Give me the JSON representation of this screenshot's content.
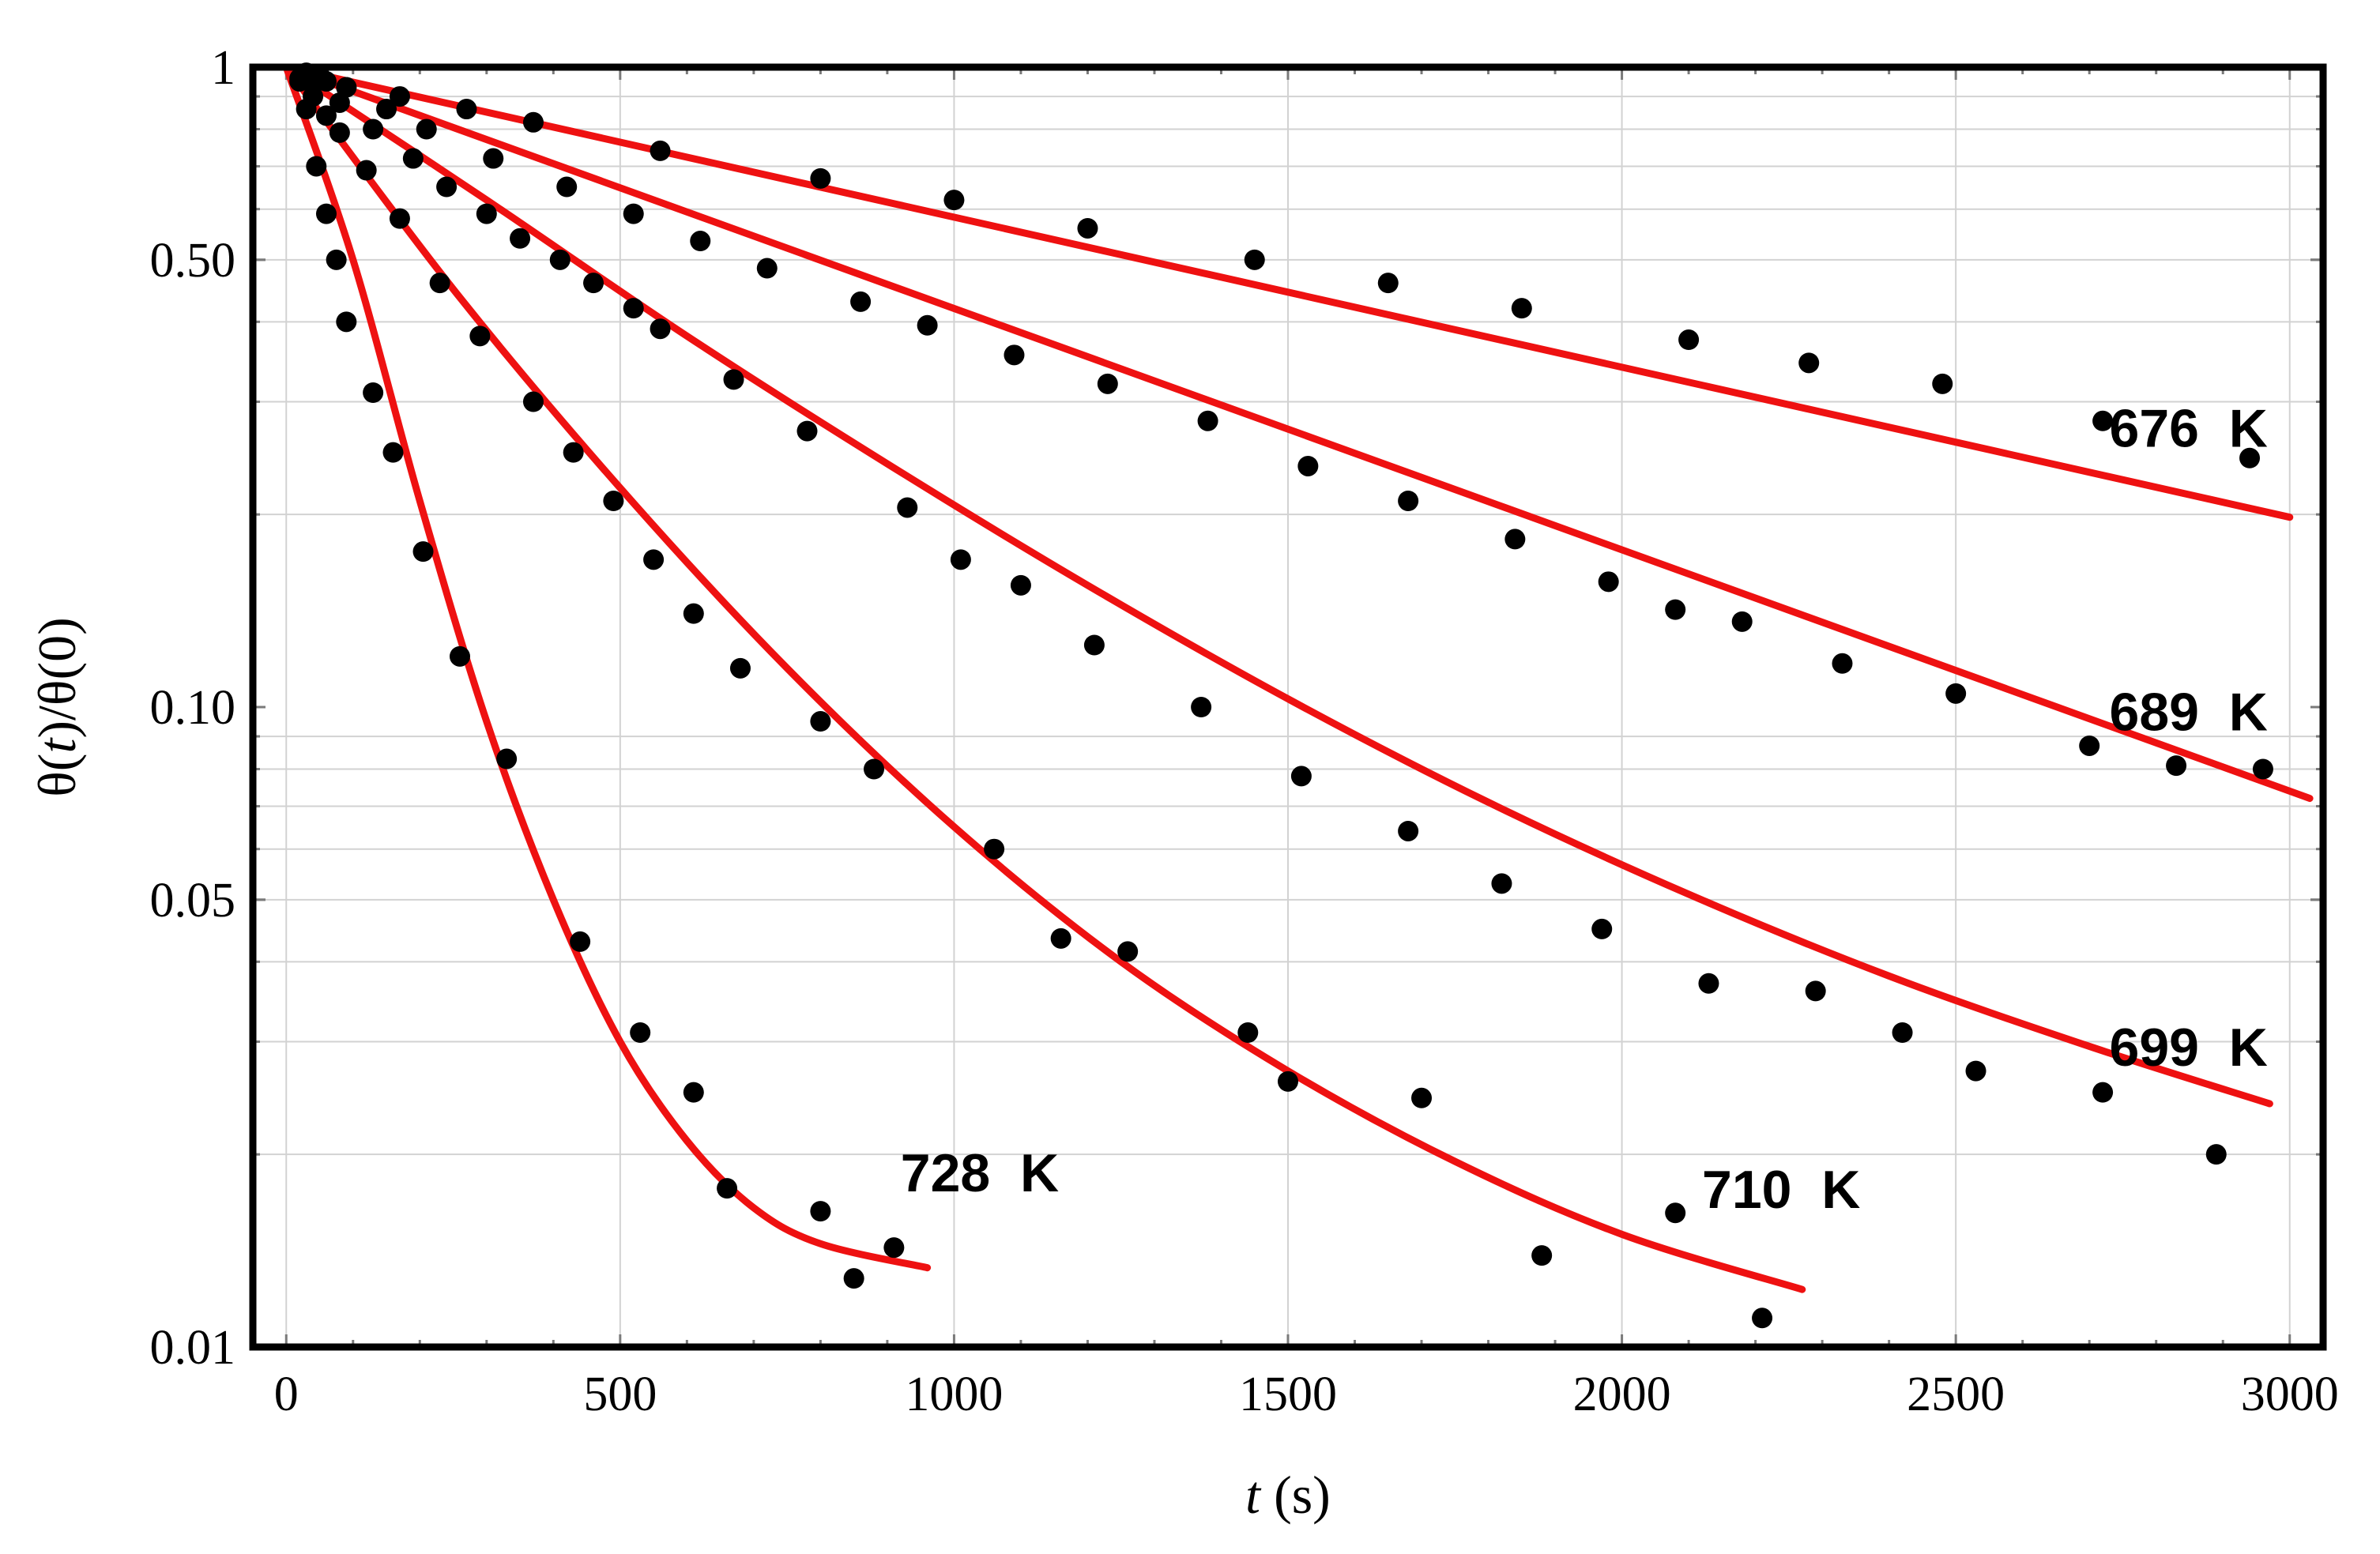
{
  "chart_data": {
    "type": "scatter",
    "title": "",
    "xlabel": "t (s)",
    "xlabel_parts": {
      "var": "t",
      "unit": " (s)"
    },
    "ylabel": "θ(t)/θ(0)",
    "ylabel_parts": {
      "a": "θ(",
      "b": "t",
      "c": ")/θ(0)"
    },
    "xlim": [
      -50,
      3050
    ],
    "ylim": [
      0.01,
      1.0
    ],
    "yscale": "log",
    "xticks": [
      0,
      500,
      1000,
      1500,
      2000,
      2500,
      3000
    ],
    "xtick_labels": [
      "0",
      "500",
      "1000",
      "1500",
      "2000",
      "2500",
      "3000"
    ],
    "yticks": [
      0.01,
      0.05,
      0.1,
      0.5,
      1
    ],
    "ytick_labels": [
      "0.01",
      "0.05",
      "0.10",
      "0.50",
      "1"
    ],
    "grid": true,
    "colors": {
      "fit": "#ee1111",
      "points": "#000000",
      "grid": "#d2d2d2",
      "frame": "#000000"
    },
    "series": [
      {
        "name": "676 K",
        "label": "676 K",
        "label_at": [
          2730,
          0.255
        ],
        "fit": [
          [
            0,
            1.0
          ],
          [
            3000,
            0.198
          ]
        ],
        "points": [
          [
            30,
            0.98
          ],
          [
            60,
            0.95
          ],
          [
            90,
            0.93
          ],
          [
            170,
            0.9
          ],
          [
            270,
            0.86
          ],
          [
            370,
            0.82
          ],
          [
            560,
            0.74
          ],
          [
            800,
            0.67
          ],
          [
            1000,
            0.62
          ],
          [
            1200,
            0.56
          ],
          [
            1450,
            0.5
          ],
          [
            1650,
            0.46
          ],
          [
            1850,
            0.42
          ],
          [
            2100,
            0.375
          ],
          [
            2280,
            0.345
          ],
          [
            2480,
            0.32
          ],
          [
            2720,
            0.28
          ],
          [
            2940,
            0.245
          ]
        ]
      },
      {
        "name": "689 K",
        "label": "689 K",
        "label_at": [
          2730,
          0.092
        ],
        "fit": [
          [
            0,
            1.0
          ],
          [
            3030,
            0.072
          ]
        ],
        "points": [
          [
            50,
            0.97
          ],
          [
            90,
            0.93
          ],
          [
            150,
            0.86
          ],
          [
            210,
            0.8
          ],
          [
            310,
            0.72
          ],
          [
            420,
            0.65
          ],
          [
            520,
            0.59
          ],
          [
            620,
            0.535
          ],
          [
            720,
            0.485
          ],
          [
            860,
            0.43
          ],
          [
            960,
            0.395
          ],
          [
            1090,
            0.355
          ],
          [
            1230,
            0.32
          ],
          [
            1380,
            0.28
          ],
          [
            1530,
            0.238
          ],
          [
            1680,
            0.21
          ],
          [
            1840,
            0.183
          ],
          [
            1980,
            0.157
          ],
          [
            2080,
            0.142
          ],
          [
            2180,
            0.136
          ],
          [
            2330,
            0.117
          ],
          [
            2500,
            0.105
          ],
          [
            2700,
            0.087
          ],
          [
            2830,
            0.081
          ],
          [
            2960,
            0.08
          ]
        ]
      },
      {
        "name": "699 K",
        "label": "699 K",
        "label_at": [
          2730,
          0.0275
        ],
        "fit": [
          [
            0,
            1.0
          ],
          [
            300,
            0.62
          ],
          [
            600,
            0.38
          ],
          [
            900,
            0.24
          ],
          [
            1200,
            0.155
          ],
          [
            1500,
            0.103
          ],
          [
            1800,
            0.071
          ],
          [
            2100,
            0.051
          ],
          [
            2400,
            0.038
          ],
          [
            2700,
            0.0295
          ],
          [
            2970,
            0.024
          ]
        ],
        "points": [
          [
            40,
            0.95
          ],
          [
            80,
            0.88
          ],
          [
            130,
            0.8
          ],
          [
            190,
            0.72
          ],
          [
            240,
            0.65
          ],
          [
            300,
            0.59
          ],
          [
            350,
            0.54
          ],
          [
            410,
            0.5
          ],
          [
            460,
            0.46
          ],
          [
            520,
            0.42
          ],
          [
            560,
            0.39
          ],
          [
            670,
            0.325
          ],
          [
            780,
            0.27
          ],
          [
            930,
            0.205
          ],
          [
            1010,
            0.17
          ],
          [
            1100,
            0.155
          ],
          [
            1210,
            0.125
          ],
          [
            1370,
            0.1
          ],
          [
            1520,
            0.078
          ],
          [
            1680,
            0.064
          ],
          [
            1820,
            0.053
          ],
          [
            1970,
            0.045
          ],
          [
            2130,
            0.037
          ],
          [
            2290,
            0.036
          ],
          [
            2420,
            0.031
          ],
          [
            2530,
            0.027
          ],
          [
            2720,
            0.025
          ],
          [
            2890,
            0.02
          ]
        ]
      },
      {
        "name": "710 K",
        "label": "710 K",
        "label_at": [
          2120,
          0.0165
        ],
        "fit": [
          [
            0,
            1.0
          ],
          [
            250,
            0.45
          ],
          [
            500,
            0.22
          ],
          [
            750,
            0.115
          ],
          [
            1000,
            0.065
          ],
          [
            1250,
            0.04
          ],
          [
            1500,
            0.027
          ],
          [
            1750,
            0.0195
          ],
          [
            2000,
            0.015
          ],
          [
            2270,
            0.0123
          ]
        ],
        "points": [
          [
            20,
            0.96
          ],
          [
            40,
            0.9
          ],
          [
            60,
            0.84
          ],
          [
            80,
            0.79
          ],
          [
            120,
            0.69
          ],
          [
            170,
            0.58
          ],
          [
            230,
            0.46
          ],
          [
            290,
            0.38
          ],
          [
            370,
            0.3
          ],
          [
            430,
            0.25
          ],
          [
            490,
            0.21
          ],
          [
            550,
            0.17
          ],
          [
            610,
            0.14
          ],
          [
            680,
            0.115
          ],
          [
            800,
            0.095
          ],
          [
            880,
            0.08
          ],
          [
            1060,
            0.06
          ],
          [
            1160,
            0.0435
          ],
          [
            1260,
            0.0415
          ],
          [
            1440,
            0.031
          ],
          [
            1500,
            0.026
          ],
          [
            1700,
            0.0245
          ],
          [
            1880,
            0.0139
          ],
          [
            2080,
            0.0162
          ],
          [
            2210,
            0.0111
          ]
        ]
      },
      {
        "name": "728 K",
        "label": "728 K",
        "label_at": [
          920,
          0.0175
        ],
        "fit": [
          [
            0,
            1.0
          ],
          [
            100,
            0.5
          ],
          [
            200,
            0.21
          ],
          [
            300,
            0.095
          ],
          [
            400,
            0.05
          ],
          [
            500,
            0.03
          ],
          [
            600,
            0.021
          ],
          [
            700,
            0.0165
          ],
          [
            800,
            0.0145
          ],
          [
            960,
            0.0133
          ]
        ],
        "points": [
          [
            20,
            0.95
          ],
          [
            30,
            0.86
          ],
          [
            45,
            0.7
          ],
          [
            60,
            0.59
          ],
          [
            75,
            0.5
          ],
          [
            90,
            0.4
          ],
          [
            130,
            0.31
          ],
          [
            160,
            0.25
          ],
          [
            205,
            0.175
          ],
          [
            260,
            0.12
          ],
          [
            330,
            0.083
          ],
          [
            440,
            0.043
          ],
          [
            530,
            0.031
          ],
          [
            610,
            0.025
          ],
          [
            660,
            0.0177
          ],
          [
            800,
            0.0163
          ],
          [
            850,
            0.0128
          ],
          [
            910,
            0.0143
          ]
        ]
      }
    ]
  }
}
